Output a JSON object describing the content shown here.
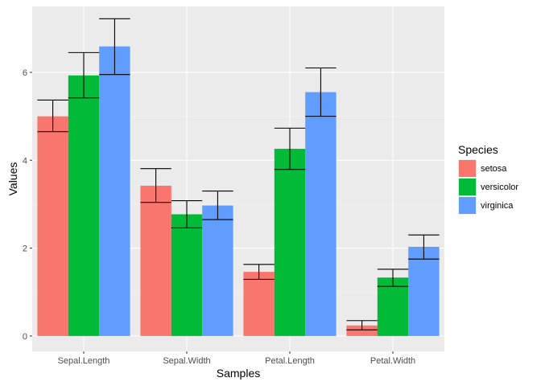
{
  "chart_data": {
    "type": "bar",
    "title": "",
    "xlabel": "Samples",
    "ylabel": "Values",
    "ylim": [
      -0.35,
      7.5
    ],
    "yticks": [
      0,
      2,
      4,
      6
    ],
    "categories": [
      "Sepal.Length",
      "Sepal.Width",
      "Petal.Length",
      "Petal.Width"
    ],
    "legend": {
      "title": "Species",
      "placement": "right"
    },
    "series": [
      {
        "name": "setosa",
        "color": "#F8766D",
        "values": [
          5.0,
          3.42,
          1.46,
          0.24
        ],
        "error_low": [
          4.65,
          3.04,
          1.29,
          0.14
        ],
        "error_high": [
          5.37,
          3.81,
          1.63,
          0.35
        ]
      },
      {
        "name": "versicolor",
        "color": "#00BA38",
        "values": [
          5.93,
          2.77,
          4.26,
          1.33
        ],
        "error_low": [
          5.42,
          2.46,
          3.79,
          1.13
        ],
        "error_high": [
          6.45,
          3.08,
          4.73,
          1.52
        ]
      },
      {
        "name": "virginica",
        "color": "#619CFF",
        "values": [
          6.59,
          2.97,
          5.55,
          2.03
        ],
        "error_low": [
          5.95,
          2.65,
          5.0,
          1.75
        ],
        "error_high": [
          7.22,
          3.3,
          6.1,
          2.3
        ]
      }
    ]
  }
}
